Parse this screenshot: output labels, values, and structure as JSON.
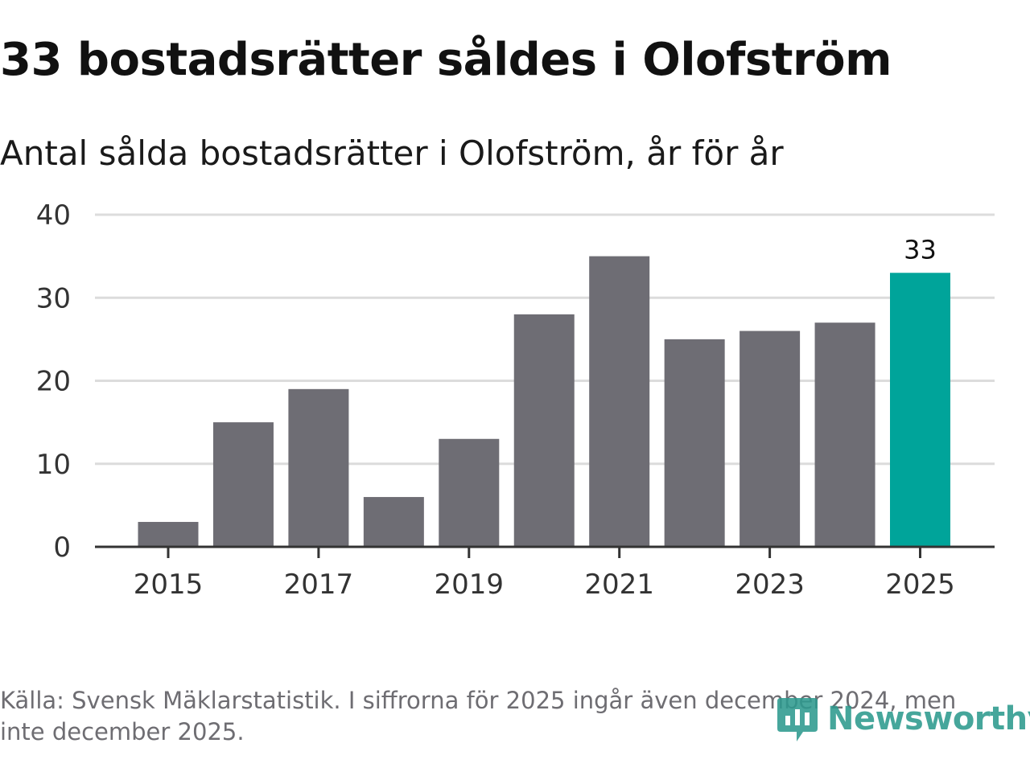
{
  "header": {
    "title": "33 bostadsrätter såldes i Olofström",
    "subtitle": "Antal sålda bostadsrätter i Olofström, år för år"
  },
  "chart_data": {
    "type": "bar",
    "title": "33 bostadsrätter såldes i Olofström",
    "subtitle": "Antal sålda bostadsrätter i Olofström, år för år",
    "xlabel": "",
    "ylabel": "",
    "categories": [
      "2015",
      "2016",
      "2017",
      "2018",
      "2019",
      "2020",
      "2021",
      "2022",
      "2023",
      "2024",
      "2025"
    ],
    "values": [
      3,
      15,
      19,
      6,
      13,
      28,
      35,
      25,
      26,
      27,
      33
    ],
    "x_tick_labels": [
      "2015",
      "2017",
      "2019",
      "2021",
      "2023",
      "2025"
    ],
    "y_ticks": [
      "0",
      "10",
      "20",
      "30",
      "40"
    ],
    "ylim": [
      0,
      40
    ],
    "grid": true,
    "highlight": {
      "category": "2025",
      "label": "33"
    },
    "colors": {
      "bar": "#6e6d74",
      "highlight": "#00a49a",
      "grid": "#dcdcdc",
      "axis": "#333333"
    }
  },
  "footer": {
    "source": "Källa: Svensk Mäklarstatistik. I siffrorna för 2025 ingår även december 2024, men inte december 2025.",
    "logo_text": "Newsworthy",
    "logo_icon": "newsworthy-chart-bubble-icon",
    "logo_color": "#2d9a8e"
  }
}
